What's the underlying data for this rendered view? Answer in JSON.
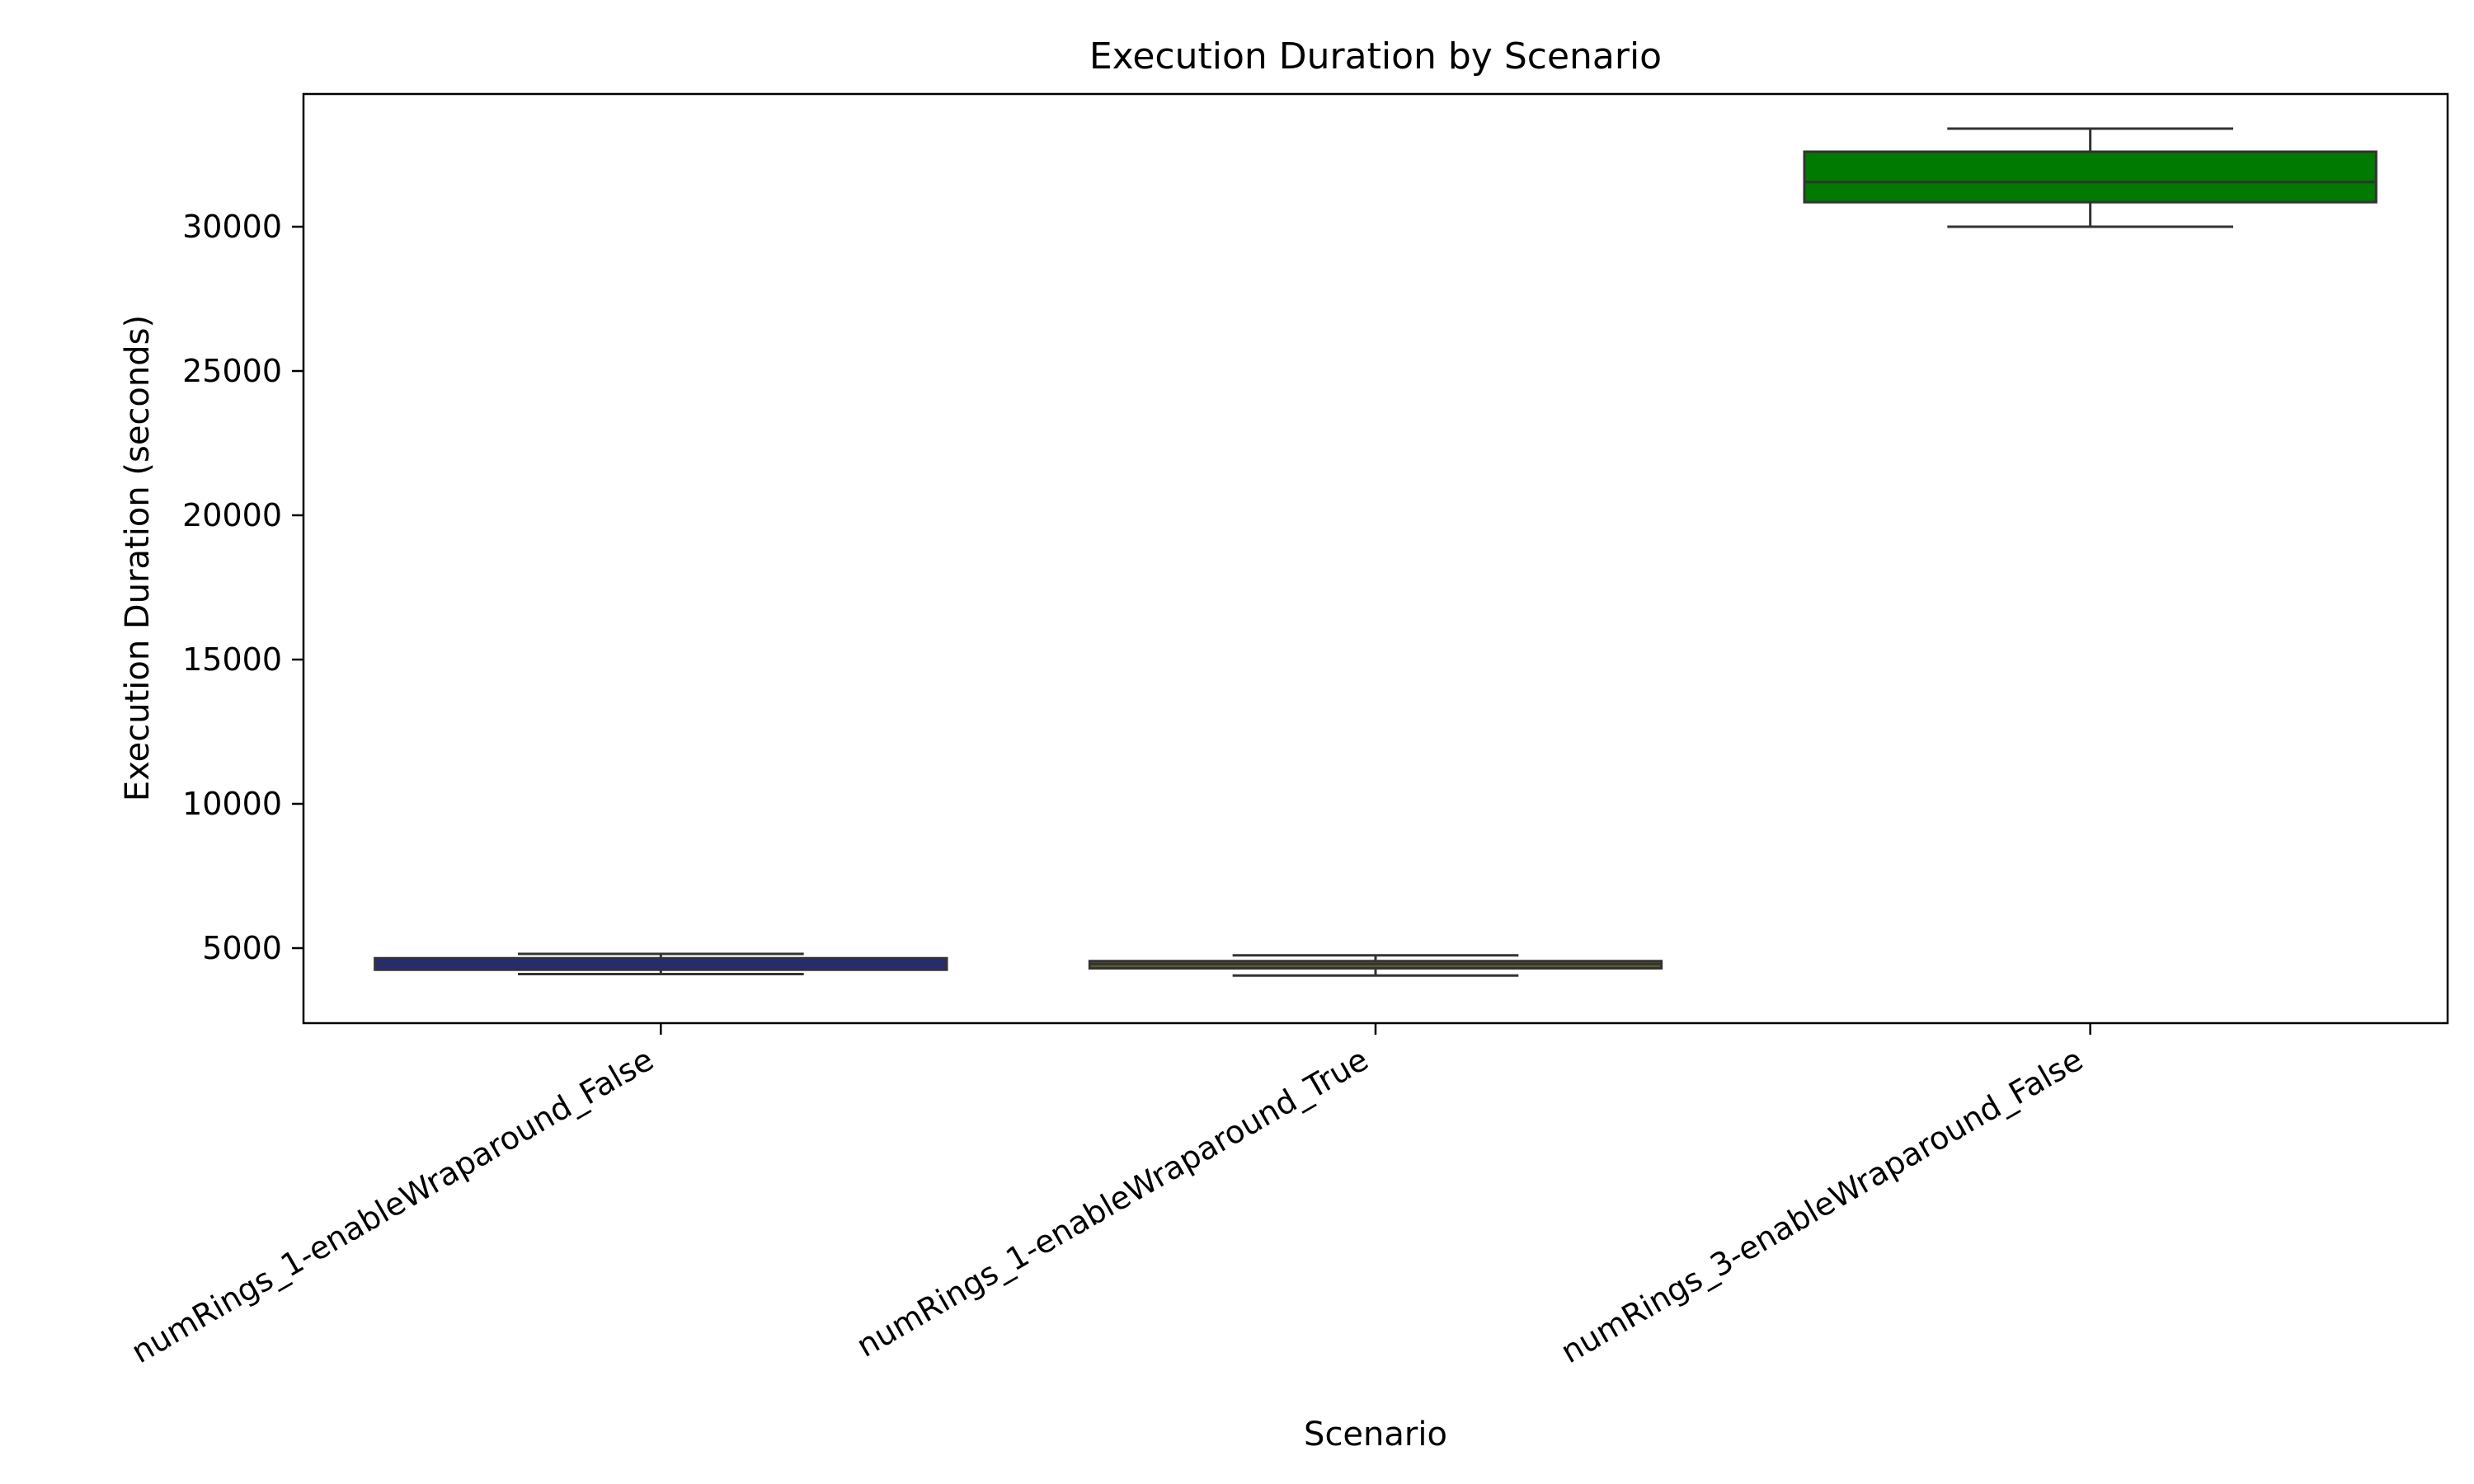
{
  "chart_data": {
    "type": "box",
    "title": "Execution Duration by Scenario",
    "xlabel": "Scenario",
    "ylabel": "Execution Duration (seconds)",
    "ylim": [
      2400,
      34600
    ],
    "yticks": [
      5000,
      10000,
      15000,
      20000,
      25000,
      30000
    ],
    "grid": false,
    "categories": [
      "numRings_1-enableWraparound_False",
      "numRings_1-enableWraparound_True",
      "numRings_3-enableWraparound_False"
    ],
    "boxes": [
      {
        "category": "numRings_1-enableWraparound_False",
        "whisker_low": 4100,
        "q1": 4250,
        "median": 4450,
        "q3": 4650,
        "whisker_high": 4800,
        "color": "#1f2a8a"
      },
      {
        "category": "numRings_1-enableWraparound_True",
        "whisker_low": 4050,
        "q1": 4300,
        "median": 4450,
        "q3": 4550,
        "whisker_high": 4750,
        "color": "#5f5a28"
      },
      {
        "category": "numRings_3-enableWraparound_False",
        "whisker_low": 30000,
        "q1": 30850,
        "median": 31550,
        "q3": 32600,
        "whisker_high": 33400,
        "color": "#007a00"
      }
    ]
  }
}
